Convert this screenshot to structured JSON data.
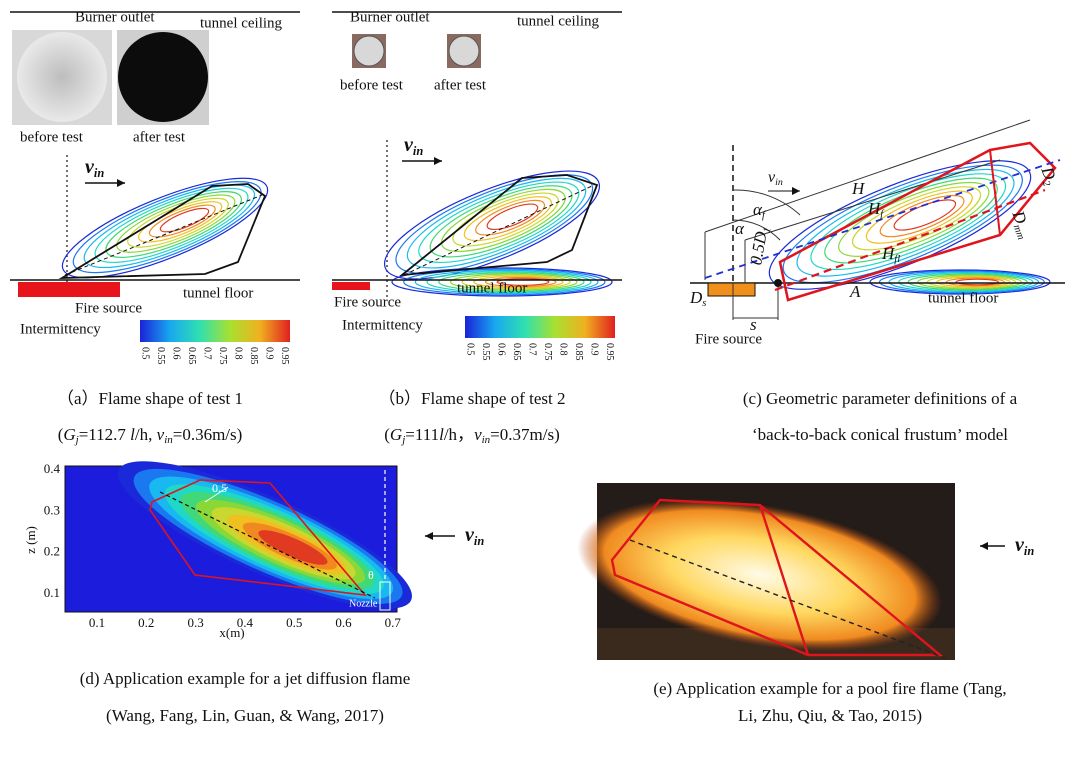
{
  "panel_a": {
    "top_labels": [
      "Burner outlet",
      "tunnel ceiling"
    ],
    "photo_labels": [
      "before test",
      "after test"
    ],
    "velocity": {
      "main": "v",
      "sub": "in"
    },
    "bottom_labels": [
      "Fire source",
      "tunnel floor"
    ],
    "colorbar": {
      "title": "Intermittency",
      "ticks": [
        "0.5",
        "0.55",
        "0.6",
        "0.65",
        "0.7",
        "0.75",
        "0.8",
        "0.85",
        "0.9",
        "0.95"
      ]
    },
    "caption": "（a）Flame shape of test 1",
    "conditions": [
      "(",
      "G",
      "j",
      "=112.7 ",
      "l",
      "/h, ",
      "v",
      "in",
      "=0.36m/s)"
    ]
  },
  "panel_b": {
    "top_labels": [
      "Burner outlet",
      "tunnel ceiling"
    ],
    "photo_labels": [
      "before test",
      "after test"
    ],
    "velocity": {
      "main": "v",
      "sub": "in"
    },
    "bottom_labels": [
      "Fire source",
      "tunnel floor"
    ],
    "colorbar": {
      "title": "Intermittency",
      "ticks": [
        "0.5",
        "0.55",
        "0.6",
        "0.65",
        "0.7",
        "0.75",
        "0.8",
        "0.85",
        "0.9",
        "0.95"
      ]
    },
    "caption": "（b）Flame shape of test 2",
    "conditions": [
      "(",
      "G",
      "j",
      "=111",
      "l",
      "/h，",
      "v",
      "in",
      "=0.37m/s)"
    ]
  },
  "panel_c": {
    "velocity": {
      "main": "v",
      "sub": "in"
    },
    "symbols": [
      {
        "main": "H"
      },
      {
        "main": "H",
        "sub": "f"
      },
      {
        "main": "α",
        "sub": "f"
      },
      {
        "main": "α"
      },
      {
        "main": "0.5D",
        "sub": "1"
      },
      {
        "main": "D",
        "sub": "2"
      },
      {
        "main": "D",
        "sub": "mm"
      },
      {
        "main": "H",
        "sub": "fl"
      },
      {
        "main": "A"
      },
      {
        "main": "D",
        "sub": "s"
      },
      {
        "main": "s"
      }
    ],
    "labels": [
      "Fire source",
      "tunnel floor"
    ],
    "caption": [
      "(c) Geometric parameter definitions of a",
      "‘back-to-back conical frustum’ model"
    ]
  },
  "panel_d": {
    "x_ticks": [
      "0.1",
      "0.2",
      "0.3",
      "0.4",
      "0.5",
      "0.6",
      "0.7"
    ],
    "y_ticks": [
      "0.1",
      "0.2",
      "0.3",
      "0.4"
    ],
    "x_label": "x(m)",
    "y_label": "z (m)",
    "contour_label": "0.5",
    "angle": "θ",
    "nozzle": "Nozzle",
    "velocity": {
      "main": "v",
      "sub": "in"
    },
    "caption": [
      "(d) Application example for a jet diffusion flame",
      "(Wang, Fang, Lin, Guan, & Wang, 2017)"
    ]
  },
  "panel_e": {
    "velocity": {
      "main": "v",
      "sub": "in"
    },
    "caption": [
      "(e) Application example for a pool fire flame (Tang,",
      "Li, Zhu, Qiu, & Tao, 2015)"
    ]
  }
}
